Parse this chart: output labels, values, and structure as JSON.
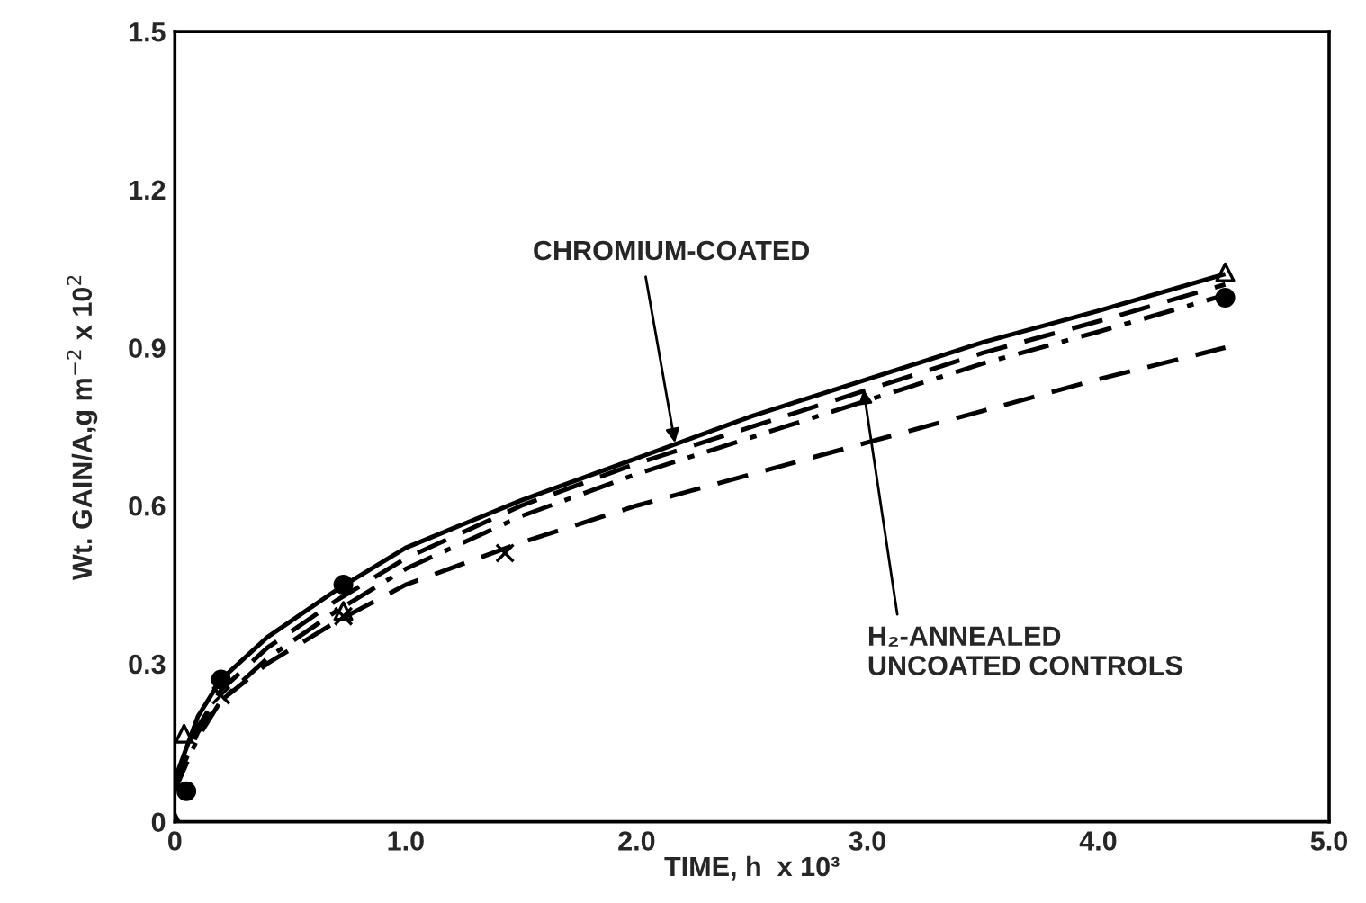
{
  "chart_data": {
    "type": "line",
    "xlabel": "TIME, h  x 10³",
    "ylabel": "Wt. GAIN/A,g m$^{−2}$ x 10$^{2}$",
    "xlim": [
      0,
      5.0
    ],
    "ylim": [
      0,
      1.5
    ],
    "xticks": [
      {
        "value": 0,
        "label": "0"
      },
      {
        "value": 1,
        "label": "1.0"
      },
      {
        "value": 2,
        "label": "2.0"
      },
      {
        "value": 3,
        "label": "3.0"
      },
      {
        "value": 4,
        "label": "4.0"
      },
      {
        "value": 5,
        "label": "5.0"
      }
    ],
    "yticks": [
      {
        "value": 0,
        "label": "0"
      },
      0.3,
      0.6,
      0.9,
      1.2,
      1.5
    ],
    "grid": false,
    "legend": false,
    "annotations": [
      {
        "text": "CHROMIUM-COATED",
        "x": 2.17,
        "y": 0.71
      },
      {
        "text": "H₂-ANNEALED\nUNCOATED CONTROLS",
        "x": 2.98,
        "y": 0.83
      }
    ],
    "series": [
      {
        "color": "#000000",
        "line_style": "solid",
        "marker": "none",
        "x": [
          0,
          0.1,
          0.2,
          0.4,
          0.7,
          1.0,
          1.5,
          2.0,
          2.5,
          3.0,
          3.5,
          4.0,
          4.55
        ],
        "values": [
          0.08,
          0.2,
          0.27,
          0.35,
          0.44,
          0.52,
          0.61,
          0.69,
          0.77,
          0.84,
          0.91,
          0.97,
          1.04
        ]
      },
      {
        "color": "#000000",
        "line_style": "dashed",
        "marker": "none",
        "x": [
          0,
          0.1,
          0.2,
          0.4,
          0.7,
          1.0,
          1.5,
          2.0,
          2.5,
          3.0,
          3.5,
          4.0,
          4.55
        ],
        "values": [
          0.07,
          0.18,
          0.25,
          0.33,
          0.42,
          0.5,
          0.6,
          0.68,
          0.75,
          0.82,
          0.89,
          0.95,
          1.02
        ]
      },
      {
        "color": "#000000",
        "line_style": "dashdot",
        "marker": "none",
        "x": [
          0,
          0.1,
          0.2,
          0.4,
          0.7,
          1.0,
          1.5,
          2.0,
          2.5,
          3.0,
          3.5,
          4.0,
          4.55
        ],
        "values": [
          0.06,
          0.16,
          0.23,
          0.31,
          0.4,
          0.48,
          0.58,
          0.66,
          0.73,
          0.8,
          0.87,
          0.93,
          1.0
        ]
      },
      {
        "color": "#000000",
        "line_style": "dashed",
        "marker": "none",
        "x": [
          0,
          0.1,
          0.2,
          0.4,
          0.7,
          1.0,
          1.5,
          2.0,
          2.5,
          3.0,
          3.5,
          4.0,
          4.55
        ],
        "values": [
          0.07,
          0.17,
          0.23,
          0.3,
          0.38,
          0.45,
          0.53,
          0.6,
          0.66,
          0.72,
          0.78,
          0.84,
          0.9
        ]
      },
      {
        "type": "scatter",
        "color": "#000000",
        "marker": "triangle",
        "x": [
          0,
          0.04,
          0.73,
          4.55
        ],
        "values": [
          0,
          0.167,
          0.4,
          1.043
        ]
      },
      {
        "type": "scatter",
        "color": "#000000",
        "marker": "circle",
        "x": [
          0.05,
          0.2,
          0.73,
          4.55
        ],
        "values": [
          0.058,
          0.27,
          0.45,
          0.995
        ]
      },
      {
        "type": "scatter",
        "color": "#000000",
        "marker": "cross",
        "x": [
          0.2,
          0.73,
          1.43
        ],
        "values": [
          0.24,
          0.39,
          0.51
        ]
      }
    ]
  }
}
